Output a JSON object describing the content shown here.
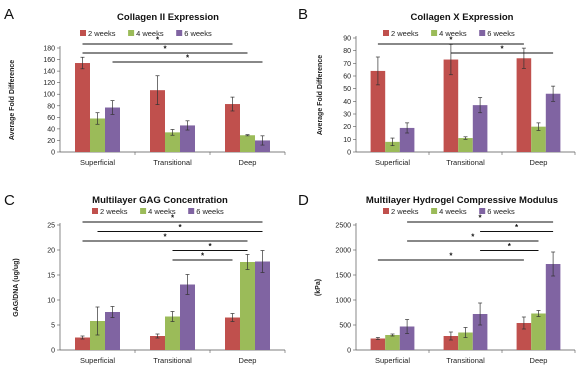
{
  "panels": [
    {
      "letter": "A"
    },
    {
      "letter": "B"
    },
    {
      "letter": "C"
    },
    {
      "letter": "D"
    }
  ],
  "chart_data": [
    {
      "type": "bar",
      "title": "Collagen II Expression",
      "xlabel": "",
      "ylabel": "Average Fold Difference",
      "ylim": [
        0,
        180
      ],
      "yticks": [
        0,
        20,
        40,
        60,
        80,
        100,
        120,
        140,
        160,
        180
      ],
      "categories": [
        "Superficial",
        "Transitional",
        "Deep"
      ],
      "series": [
        {
          "name": "2 weeks",
          "color": "#c0504d",
          "values": [
            154,
            107,
            83
          ],
          "errors": [
            10,
            25,
            12
          ]
        },
        {
          "name": "4 weeks",
          "color": "#9bbb59",
          "values": [
            58,
            34,
            29
          ],
          "errors": [
            10,
            5,
            1
          ]
        },
        {
          "name": "6 weeks",
          "color": "#8064a2",
          "values": [
            77,
            46,
            20
          ],
          "errors": [
            12,
            8,
            8
          ]
        }
      ],
      "legend": "top",
      "significance": [
        {
          "from": [
            0,
            0
          ],
          "to": [
            2,
            0
          ],
          "label": "*"
        },
        {
          "from": [
            0,
            0
          ],
          "to": [
            2,
            1
          ],
          "label": "*"
        },
        {
          "from": [
            0,
            2
          ],
          "to": [
            2,
            2
          ],
          "label": "*"
        }
      ]
    },
    {
      "type": "bar",
      "title": "Collagen X Expression",
      "xlabel": "",
      "ylabel": "Average Fold Difference",
      "ylim": [
        0,
        90
      ],
      "yticks": [
        0,
        10,
        20,
        30,
        40,
        50,
        60,
        70,
        80,
        90
      ],
      "categories": [
        "Superficial",
        "Transitional",
        "Deep"
      ],
      "series": [
        {
          "name": "2 weeks",
          "color": "#c0504d",
          "values": [
            64,
            73,
            74
          ],
          "errors": [
            11,
            12,
            8
          ]
        },
        {
          "name": "4 weeks",
          "color": "#9bbb59",
          "values": [
            8,
            11,
            20
          ],
          "errors": [
            3,
            1,
            3
          ]
        },
        {
          "name": "6 weeks",
          "color": "#8064a2",
          "values": [
            19,
            37,
            46
          ],
          "errors": [
            4,
            6,
            6
          ]
        }
      ],
      "legend": "top",
      "significance": [
        {
          "from": [
            0,
            0
          ],
          "to": [
            2,
            0
          ],
          "label": "*"
        },
        {
          "from": [
            1,
            0
          ],
          "to": [
            2,
            2
          ],
          "label": "*"
        }
      ]
    },
    {
      "type": "bar",
      "title": "Multilayer GAG Concentration",
      "xlabel": "",
      "ylabel": "GAG/DNA (ug/ug)",
      "ylim": [
        0,
        25
      ],
      "yticks": [
        0,
        5,
        10,
        15,
        20,
        25
      ],
      "categories": [
        "Superficial",
        "Transitional",
        "Deep"
      ],
      "series": [
        {
          "name": "2 weeks",
          "color": "#c0504d",
          "values": [
            2.5,
            2.8,
            6.5
          ],
          "errors": [
            0.3,
            0.4,
            0.8
          ]
        },
        {
          "name": "4 weeks",
          "color": "#9bbb59",
          "values": [
            5.8,
            6.7,
            17.6
          ],
          "errors": [
            2.8,
            1.0,
            1.5
          ]
        },
        {
          "name": "6 weeks",
          "color": "#8064a2",
          "values": [
            7.6,
            13.1,
            17.7
          ],
          "errors": [
            1.1,
            2.0,
            2.2
          ]
        }
      ],
      "legend": "top",
      "significance": [
        {
          "from": [
            0,
            0
          ],
          "to": [
            2,
            2
          ],
          "label": "*"
        },
        {
          "from": [
            0,
            1
          ],
          "to": [
            2,
            2
          ],
          "label": "*"
        },
        {
          "from": [
            0,
            0
          ],
          "to": [
            2,
            1
          ],
          "label": "*"
        },
        {
          "from": [
            1,
            1
          ],
          "to": [
            2,
            1
          ],
          "label": "*"
        },
        {
          "from": [
            1,
            1
          ],
          "to": [
            2,
            0
          ],
          "label": "*"
        }
      ]
    },
    {
      "type": "bar",
      "title": "Multilayer Hydrogel Compressive Modulus",
      "xlabel": "",
      "ylabel": "(kPa)",
      "ylim": [
        0,
        2500
      ],
      "yticks": [
        0,
        500,
        1000,
        1500,
        2000,
        2500
      ],
      "categories": [
        "Superficial",
        "Transitional",
        "Deep"
      ],
      "series": [
        {
          "name": "2 weeks",
          "color": "#c0504d",
          "values": [
            230,
            280,
            540
          ],
          "errors": [
            20,
            80,
            120
          ]
        },
        {
          "name": "4 weeks",
          "color": "#9bbb59",
          "values": [
            300,
            350,
            730
          ],
          "errors": [
            20,
            100,
            60
          ]
        },
        {
          "name": "6 weeks",
          "color": "#8064a2",
          "values": [
            470,
            720,
            1720
          ],
          "errors": [
            140,
            220,
            240
          ]
        }
      ],
      "legend": "top",
      "significance": [
        {
          "from": [
            0,
            2
          ],
          "to": [
            2,
            2
          ],
          "label": "*"
        },
        {
          "from": [
            1,
            2
          ],
          "to": [
            2,
            2
          ],
          "label": "*"
        },
        {
          "from": [
            0,
            2
          ],
          "to": [
            2,
            1
          ],
          "label": "*"
        },
        {
          "from": [
            1,
            2
          ],
          "to": [
            2,
            1
          ],
          "label": "*"
        },
        {
          "from": [
            0,
            0
          ],
          "to": [
            2,
            0
          ],
          "label": "*"
        }
      ]
    }
  ]
}
